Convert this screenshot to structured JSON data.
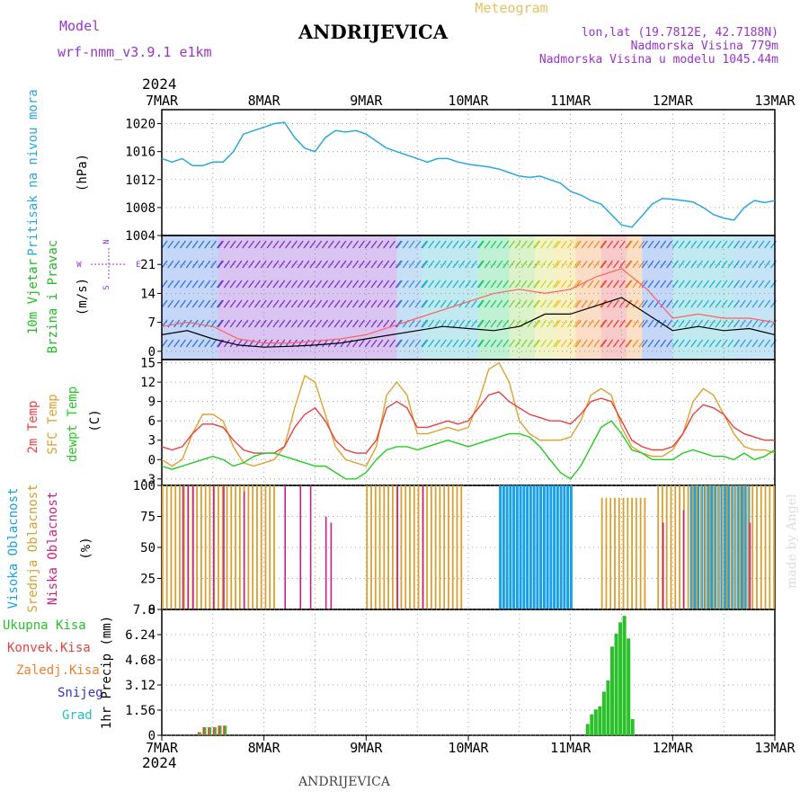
{
  "header": {
    "model_label": "Model",
    "model_name": "wrf-nmm_v3.9.1 e1km",
    "station": "ANDRIJEVICA",
    "product": "Meteogram",
    "lonlat": "lon,lat (19.7812E, 42.7188N)",
    "elevation": "Nadmorska Visina 779m",
    "model_elevation": "Nadmorska Visina u modelu 1045.44m",
    "footer_station": "ANDRIJEVICA",
    "watermark": "made by Angel",
    "year_top": "2024",
    "year_bottom": "2024"
  },
  "x_axis": {
    "ticks": [
      "7MAR",
      "8MAR",
      "9MAR",
      "10MAR",
      "11MAR",
      "12MAR",
      "13MAR"
    ]
  },
  "colors": {
    "pressure": "#29a8e0",
    "temp2m": "#e84040",
    "sfctemp": "#e0a030",
    "dewpoint": "#22cc22",
    "cloud_high": "#1aa0e6",
    "cloud_mid": "#d8a030",
    "cloud_low": "#cc2288",
    "rain_total": "#2ac02a",
    "rain_conv": "#e84040",
    "freezing": "#f08030",
    "snow": "#3333cc",
    "hail": "#20c0c0",
    "wind_label": "#22bb22",
    "purple": "#9933cc"
  },
  "chart_data": [
    {
      "type": "line",
      "id": "pressure",
      "labels": {
        "left": "Pritisak na nivou mora",
        "unit": "(hPa)"
      },
      "ylim": [
        1004,
        1022
      ],
      "yticks": [
        1004,
        1008,
        1012,
        1016,
        1020
      ],
      "x_days": [
        0,
        0.1,
        0.2,
        0.3,
        0.4,
        0.5,
        0.6,
        0.7,
        0.8,
        0.9,
        1.0,
        1.1,
        1.2,
        1.3,
        1.4,
        1.5,
        1.6,
        1.7,
        1.8,
        1.9,
        2.0,
        2.1,
        2.2,
        2.3,
        2.4,
        2.5,
        2.6,
        2.7,
        2.8,
        2.9,
        3.0,
        3.1,
        3.2,
        3.3,
        3.4,
        3.5,
        3.6,
        3.7,
        3.8,
        3.9,
        4.0,
        4.1,
        4.2,
        4.3,
        4.4,
        4.5,
        4.6,
        4.7,
        4.8,
        4.9,
        5.0,
        5.1,
        5.2,
        5.3,
        5.4,
        5.5,
        5.6,
        5.7,
        5.8,
        5.9,
        6.0
      ],
      "series": [
        {
          "values": [
            1015,
            1014.5,
            1015,
            1014,
            1014,
            1014.5,
            1014.5,
            1016,
            1018.5,
            1019,
            1019.5,
            1020,
            1020.2,
            1018,
            1016.5,
            1016,
            1018,
            1019,
            1018.8,
            1019,
            1018.5,
            1017.5,
            1016.5,
            1016,
            1015.5,
            1015,
            1014.5,
            1015,
            1015,
            1014.5,
            1014.2,
            1014,
            1013.8,
            1013.5,
            1013,
            1012.5,
            1012.3,
            1012.5,
            1012,
            1011.5,
            1010.3,
            1009.8,
            1009,
            1008.5,
            1007,
            1005.5,
            1005.2,
            1006.8,
            1008.5,
            1009.3,
            1009.2,
            1009,
            1008.8,
            1008,
            1007,
            1006.5,
            1006.2,
            1008,
            1009,
            1008.7,
            1009
          ]
        }
      ]
    },
    {
      "type": "line",
      "id": "wind",
      "labels": {
        "left1": "10m Vjetar",
        "left2": "Brzina i Pravac",
        "unit": "(m/s)",
        "compass_n": "N",
        "compass_s": "S",
        "compass_w": "W",
        "compass_e": "E"
      },
      "ylim": [
        -2,
        28
      ],
      "yticks": [
        0,
        7,
        14,
        21
      ],
      "x_days": [
        0,
        0.25,
        0.5,
        0.75,
        1.0,
        1.25,
        1.5,
        1.75,
        2.0,
        2.25,
        2.5,
        2.75,
        3.0,
        3.25,
        3.5,
        3.75,
        4.0,
        4.25,
        4.5,
        4.75,
        5.0,
        5.25,
        5.5,
        5.75,
        6.0
      ],
      "series": [
        {
          "name": "speed",
          "values": [
            4,
            5,
            3,
            1.5,
            1,
            1.2,
            1.5,
            2,
            3,
            4,
            5,
            6,
            5.5,
            5,
            6,
            9,
            9,
            11,
            13,
            9,
            5,
            6,
            5,
            5.5,
            4
          ]
        },
        {
          "name": "gust",
          "values": [
            6,
            7,
            6,
            3,
            2,
            2,
            2.5,
            3,
            4,
            6,
            8,
            10,
            12,
            14,
            15,
            14,
            15,
            18,
            20,
            15,
            8,
            9,
            8,
            8,
            7
          ]
        }
      ]
    },
    {
      "type": "line",
      "id": "temperature",
      "labels": {
        "left1": "2m Temp",
        "left2": "SFC Temp",
        "left3": "dewpt Temp",
        "unit": "(C)"
      },
      "ylim": [
        -4,
        15.5
      ],
      "yticks": [
        -3,
        0,
        3,
        6,
        9,
        12,
        15
      ],
      "x_days": [
        0,
        0.1,
        0.2,
        0.3,
        0.4,
        0.5,
        0.6,
        0.7,
        0.8,
        0.9,
        1.0,
        1.1,
        1.2,
        1.3,
        1.4,
        1.5,
        1.6,
        1.7,
        1.8,
        1.9,
        2.0,
        2.1,
        2.2,
        2.3,
        2.4,
        2.5,
        2.6,
        2.7,
        2.8,
        2.9,
        3.0,
        3.1,
        3.2,
        3.3,
        3.4,
        3.5,
        3.6,
        3.7,
        3.8,
        3.9,
        4.0,
        4.1,
        4.2,
        4.3,
        4.4,
        4.5,
        4.6,
        4.7,
        4.8,
        4.9,
        5.0,
        5.1,
        5.2,
        5.3,
        5.4,
        5.5,
        5.6,
        5.7,
        5.8,
        5.9,
        6.0
      ],
      "series": [
        {
          "name": "2m",
          "values": [
            2,
            1.5,
            2,
            4,
            5.5,
            5.5,
            5,
            3,
            1.5,
            1,
            1,
            1,
            2,
            5,
            7,
            8,
            6,
            3,
            1.5,
            1,
            1,
            3,
            8,
            9,
            8,
            5,
            5,
            5.5,
            6,
            5.5,
            6,
            8,
            10,
            10.5,
            9,
            8,
            7,
            6.5,
            6,
            6,
            5.5,
            7,
            9,
            9.5,
            9,
            6,
            3,
            2,
            1.5,
            1.5,
            2,
            4,
            7,
            8.5,
            8,
            7,
            5,
            4,
            3.5,
            3,
            3
          ]
        },
        {
          "name": "sfc",
          "values": [
            0,
            -1,
            0,
            4,
            7,
            7,
            6,
            2,
            -0.5,
            -1,
            -0.5,
            0,
            2,
            8,
            13,
            12,
            7,
            2,
            0,
            -0.5,
            -1,
            2,
            10,
            12,
            10,
            4,
            4,
            4.5,
            5,
            4.5,
            5,
            9,
            14,
            15,
            12,
            6,
            4,
            3,
            3,
            3,
            3.5,
            6,
            10,
            11,
            10,
            5,
            2,
            1,
            0.5,
            0.5,
            1.5,
            4,
            9,
            11,
            10,
            7,
            4,
            2,
            1.5,
            1.5,
            1
          ]
        },
        {
          "name": "dewpt",
          "values": [
            -1,
            -1.5,
            -1,
            -0.5,
            0,
            0.5,
            0,
            -1,
            -0.5,
            0.5,
            1,
            1,
            0.5,
            0,
            -0.5,
            -1,
            -1,
            -2,
            -3,
            -3,
            -2,
            0,
            1.5,
            2,
            2,
            1.5,
            2,
            2.5,
            3,
            2.5,
            2,
            2.5,
            3,
            3.5,
            4,
            4,
            3.5,
            2,
            0,
            -2,
            -3,
            -1,
            2,
            5,
            6,
            4,
            1.5,
            1,
            0,
            0,
            0,
            1,
            1.5,
            1,
            0.5,
            0.5,
            0,
            1,
            0,
            0.5,
            1.5
          ]
        }
      ]
    },
    {
      "type": "bar",
      "id": "clouds",
      "labels": {
        "left1": "Visoka Oblacnost",
        "left2": "Srednja Oblacnost",
        "left3": "Niska Oblacnost",
        "unit": "(%)"
      },
      "ylim": [
        0,
        100
      ],
      "yticks": [
        0,
        25,
        50,
        75,
        100
      ],
      "series": [
        {
          "name": "high",
          "segments": [
            {
              "from": 3.3,
              "to": 4.0,
              "value": 100
            },
            {
              "from": 5.17,
              "to": 5.75,
              "value": 100
            }
          ]
        },
        {
          "name": "mid",
          "segments": [
            {
              "from": 0.0,
              "to": 1.1,
              "value": 100
            },
            {
              "from": 2.0,
              "to": 2.95,
              "value": 100
            },
            {
              "from": 4.3,
              "to": 4.75,
              "value": 90
            },
            {
              "from": 4.85,
              "to": 6.0,
              "value": 100
            }
          ]
        },
        {
          "name": "low",
          "spikes": [
            {
              "x": 0.2,
              "value": 100
            },
            {
              "x": 0.25,
              "value": 100
            },
            {
              "x": 0.3,
              "value": 100
            },
            {
              "x": 0.5,
              "value": 100
            },
            {
              "x": 0.6,
              "value": 100
            },
            {
              "x": 0.8,
              "value": 95
            },
            {
              "x": 1.2,
              "value": 100
            },
            {
              "x": 1.35,
              "value": 100
            },
            {
              "x": 1.45,
              "value": 100
            },
            {
              "x": 1.6,
              "value": 75
            },
            {
              "x": 1.65,
              "value": 70
            },
            {
              "x": 2.3,
              "value": 100
            },
            {
              "x": 2.55,
              "value": 100
            },
            {
              "x": 4.9,
              "value": 70
            },
            {
              "x": 5.1,
              "value": 80
            },
            {
              "x": 5.75,
              "value": 70
            }
          ]
        }
      ]
    },
    {
      "type": "bar",
      "id": "precip",
      "labels": {
        "unit": "1hr Precip (mm)",
        "legend": [
          "Ukupna Kisa",
          "Konvek.Kisa",
          "Zaledj.Kisa",
          "Snijeg",
          "Grad"
        ]
      },
      "ylim": [
        0,
        7.8
      ],
      "yticks": [
        "0",
        "1.56",
        "3.12",
        "4.68",
        "6.24",
        "7.8"
      ],
      "series": [
        {
          "name": "total",
          "points": [
            {
              "x": 4.15,
              "value": 0.7
            },
            {
              "x": 4.19,
              "value": 1.3
            },
            {
              "x": 4.23,
              "value": 1.6
            },
            {
              "x": 4.27,
              "value": 1.8
            },
            {
              "x": 4.31,
              "value": 2.7
            },
            {
              "x": 4.35,
              "value": 3.4
            },
            {
              "x": 4.39,
              "value": 5.5
            },
            {
              "x": 4.43,
              "value": 6.3
            },
            {
              "x": 4.47,
              "value": 7.0
            },
            {
              "x": 4.51,
              "value": 7.4
            },
            {
              "x": 4.55,
              "value": 6.0
            },
            {
              "x": 4.59,
              "value": 1.0
            }
          ]
        },
        {
          "name": "mixed",
          "points": [
            {
              "x": 0.35,
              "value": 0.2
            },
            {
              "x": 0.4,
              "value": 0.5
            },
            {
              "x": 0.45,
              "value": 0.5
            },
            {
              "x": 0.5,
              "value": 0.5
            },
            {
              "x": 0.55,
              "value": 0.6
            },
            {
              "x": 0.6,
              "value": 0.6
            }
          ]
        }
      ]
    }
  ]
}
